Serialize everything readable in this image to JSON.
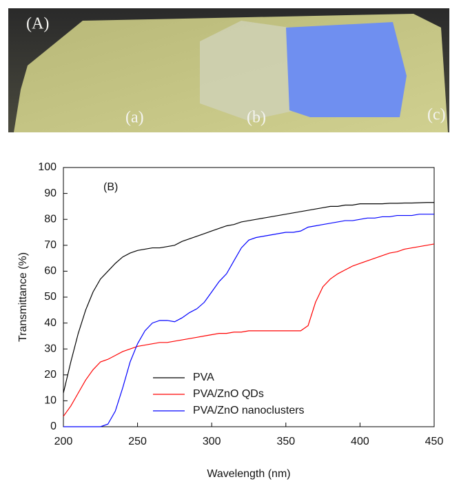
{
  "photo": {
    "label": "(A)",
    "samples": [
      "(a)",
      "(b)",
      "(c)"
    ]
  },
  "chart_data": {
    "type": "line",
    "annotation": "(B)",
    "x_label": "Wavelength (nm)",
    "y_label": "Transmittance (%)",
    "x": [
      200,
      205,
      210,
      215,
      220,
      225,
      230,
      235,
      240,
      245,
      250,
      255,
      260,
      265,
      270,
      275,
      280,
      285,
      290,
      295,
      300,
      305,
      310,
      315,
      320,
      325,
      330,
      335,
      340,
      345,
      350,
      355,
      360,
      365,
      370,
      375,
      380,
      385,
      390,
      395,
      400,
      405,
      410,
      415,
      420,
      425,
      430,
      435,
      440,
      445,
      450
    ],
    "series": [
      {
        "name": "PVA",
        "color": "#000000",
        "values": [
          13,
          25,
          36,
          45,
          52,
          57,
          60,
          63,
          65.5,
          67,
          68,
          68.5,
          69,
          69,
          69.5,
          70,
          71.5,
          72.5,
          73.5,
          74.5,
          75.5,
          76.5,
          77.5,
          78,
          79,
          79.5,
          80,
          80.5,
          81,
          81.5,
          82,
          82.5,
          83,
          83.5,
          84,
          84.5,
          85,
          85,
          85.5,
          85.5,
          86,
          86,
          86,
          86,
          86.2,
          86.2,
          86.3,
          86.3,
          86.4,
          86.5,
          86.5
        ]
      },
      {
        "name": "PVA/ZnO QDs",
        "color": "#ff0000",
        "values": [
          4,
          8,
          13,
          18,
          22,
          25,
          26,
          27.5,
          29,
          30,
          31,
          31.5,
          32,
          32.5,
          32.5,
          33,
          33.5,
          34,
          34.5,
          35,
          35.5,
          36,
          36,
          36.5,
          36.5,
          37,
          37,
          37,
          37,
          37,
          37,
          37,
          37,
          39,
          48,
          54,
          57,
          59,
          60.5,
          62,
          63,
          64,
          65,
          66,
          67,
          67.5,
          68.5,
          69,
          69.5,
          70,
          70.5
        ]
      },
      {
        "name": "PVA/ZnO nanoclusters",
        "color": "#0000ff",
        "values": [
          0,
          0,
          0,
          0,
          0,
          0,
          1,
          6,
          15,
          25,
          32,
          37,
          40,
          41,
          41,
          40.5,
          42,
          44,
          45.5,
          48,
          52,
          56,
          59,
          64,
          69,
          72,
          73,
          73.5,
          74,
          74.5,
          75,
          75,
          75.5,
          77,
          77.5,
          78,
          78.5,
          79,
          79.5,
          79.5,
          80,
          80.5,
          80.5,
          81,
          81,
          81.5,
          81.5,
          81.5,
          82,
          82,
          82
        ]
      }
    ],
    "xlim": [
      200,
      450
    ],
    "xticks": [
      200,
      250,
      300,
      350,
      400,
      450
    ],
    "ylim": [
      0,
      100
    ],
    "yticks": [
      0,
      10,
      20,
      30,
      40,
      50,
      60,
      70,
      80,
      90,
      100
    ]
  }
}
